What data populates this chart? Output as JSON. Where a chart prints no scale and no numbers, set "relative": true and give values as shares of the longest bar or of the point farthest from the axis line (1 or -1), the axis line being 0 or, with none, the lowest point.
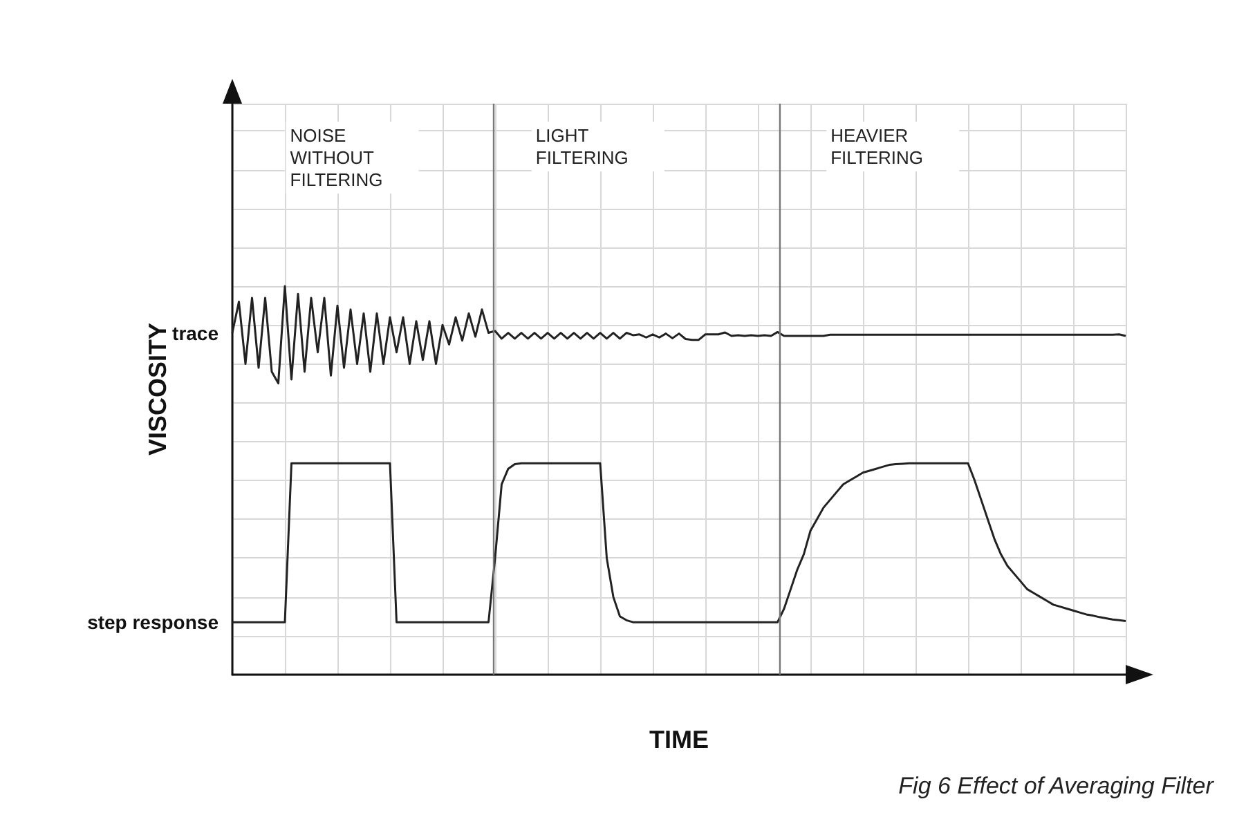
{
  "chart_data": {
    "type": "line",
    "relative": true,
    "xlabel": "TIME",
    "ylabel": "VISCOSITY",
    "annotations": [
      "NOISE WITHOUT FILTERING",
      "LIGHT FILTERING",
      "HEAVIER FILTERING",
      "Fig 6 Effect of Averaging Filter"
    ],
    "legend": false,
    "grid": true,
    "marker": "none",
    "line_style": "solid",
    "categories": [
      null,
      null,
      null,
      null,
      null,
      null,
      null,
      null,
      null,
      null,
      null,
      null,
      null,
      null,
      null,
      null,
      null,
      null,
      null,
      null,
      null,
      null,
      null,
      null,
      null,
      null,
      null,
      null,
      null,
      null,
      null,
      null,
      null,
      null,
      null,
      null,
      null,
      null,
      null,
      null,
      null,
      null,
      null,
      null,
      null,
      null,
      null,
      null,
      null,
      null,
      null,
      null,
      null,
      null,
      null,
      null,
      null,
      null,
      null,
      null,
      null,
      null,
      null,
      null,
      null,
      null,
      null,
      null,
      null,
      null,
      null,
      null,
      null,
      null,
      null,
      null,
      null,
      null,
      null,
      null,
      null,
      null,
      null,
      null,
      null,
      null,
      null,
      null,
      null,
      null,
      null,
      null,
      null,
      null,
      null,
      null,
      null,
      null,
      null,
      null,
      null,
      null,
      null,
      null,
      null,
      null,
      null,
      null,
      null,
      null,
      null,
      null,
      null,
      null,
      null,
      null,
      null,
      null,
      null,
      null,
      null,
      null,
      null,
      null,
      null,
      null,
      null,
      null,
      null,
      null,
      null,
      null,
      null,
      null,
      null,
      null,
      null
    ],
    "series": [
      {
        "name": "trace",
        "color": "#222222",
        "values": [
          0.88,
          0.96,
          0.8,
          0.97,
          0.79,
          0.97,
          0.78,
          0.75,
          1,
          0.76,
          0.98,
          0.78,
          0.97,
          0.83,
          0.97,
          0.77,
          0.95,
          0.79,
          0.94,
          0.8,
          0.93,
          0.78,
          0.93,
          0.8,
          0.92,
          0.83,
          0.92,
          0.8,
          0.91,
          0.81,
          0.91,
          0.8,
          0.9,
          0.85,
          0.92,
          0.86,
          0.93,
          0.87,
          0.94,
          0.88,
          0.885,
          0.865,
          0.88,
          0.865,
          0.88,
          0.865,
          0.88,
          0.865,
          0.88,
          0.865,
          0.88,
          0.865,
          0.88,
          0.865,
          0.88,
          0.865,
          0.88,
          0.865,
          0.88,
          0.865,
          0.88,
          0.874,
          0.876,
          0.868,
          0.876,
          0.868,
          0.878,
          0.866,
          0.878,
          0.864,
          0.862,
          0.862,
          0.876,
          0.876,
          0.876,
          0.881,
          0.872,
          0.874,
          0.872,
          0.874,
          0.872,
          0.874,
          0.872,
          0.882,
          0.872,
          0.872,
          0.872,
          0.872,
          0.872,
          0.872,
          0.872,
          0.875,
          0.875,
          0.875,
          0.875,
          0.875,
          0.875,
          0.875,
          0.875,
          0.875,
          0.875,
          0.875,
          0.875,
          0.875,
          0.875,
          0.875,
          0.875,
          0.875,
          0.875,
          0.875,
          0.875,
          0.875,
          0.875,
          0.875,
          0.875,
          0.875,
          0.875,
          0.875,
          0.875,
          0.875,
          0.875,
          0.875,
          0.875,
          0.875,
          0.875,
          0.875,
          0.875,
          0.875,
          0.875,
          0.875,
          0.875,
          0.875,
          0.875,
          0.875,
          0.875,
          0.876,
          0.872
        ]
      },
      {
        "name": "step response",
        "color": "#222222",
        "values": [
          0.135,
          0.135,
          0.135,
          0.135,
          0.135,
          0.135,
          0.135,
          0.135,
          0.135,
          0.544,
          0.544,
          0.544,
          0.544,
          0.544,
          0.544,
          0.544,
          0.544,
          0.544,
          0.544,
          0.544,
          0.544,
          0.544,
          0.544,
          0.544,
          0.544,
          0.135,
          0.135,
          0.135,
          0.135,
          0.135,
          0.135,
          0.135,
          0.135,
          0.135,
          0.135,
          0.135,
          0.135,
          0.135,
          0.135,
          0.135,
          0.3,
          0.49,
          0.53,
          0.542,
          0.544,
          0.544,
          0.544,
          0.544,
          0.544,
          0.544,
          0.544,
          0.544,
          0.544,
          0.544,
          0.544,
          0.544,
          0.544,
          0.3,
          0.2,
          0.15,
          0.14,
          0.135,
          0.135,
          0.135,
          0.135,
          0.135,
          0.135,
          0.135,
          0.135,
          0.135,
          0.135,
          0.135,
          0.135,
          0.135,
          0.135,
          0.135,
          0.135,
          0.135,
          0.135,
          0.135,
          0.135,
          0.135,
          0.135,
          0.135,
          0.17,
          0.22,
          0.27,
          0.31,
          0.37,
          0.4,
          0.43,
          0.45,
          0.47,
          0.49,
          0.5,
          0.51,
          0.52,
          0.525,
          0.53,
          0.535,
          0.54,
          0.542,
          0.543,
          0.544,
          0.544,
          0.544,
          0.544,
          0.544,
          0.544,
          0.544,
          0.544,
          0.544,
          0.544,
          0.5,
          0.45,
          0.4,
          0.35,
          0.31,
          0.28,
          0.26,
          0.24,
          0.22,
          0.21,
          0.2,
          0.19,
          0.18,
          0.175,
          0.17,
          0.165,
          0.16,
          0.155,
          0.152,
          0.148,
          0.145,
          0.142,
          0.14,
          0.138
        ]
      }
    ]
  }
}
